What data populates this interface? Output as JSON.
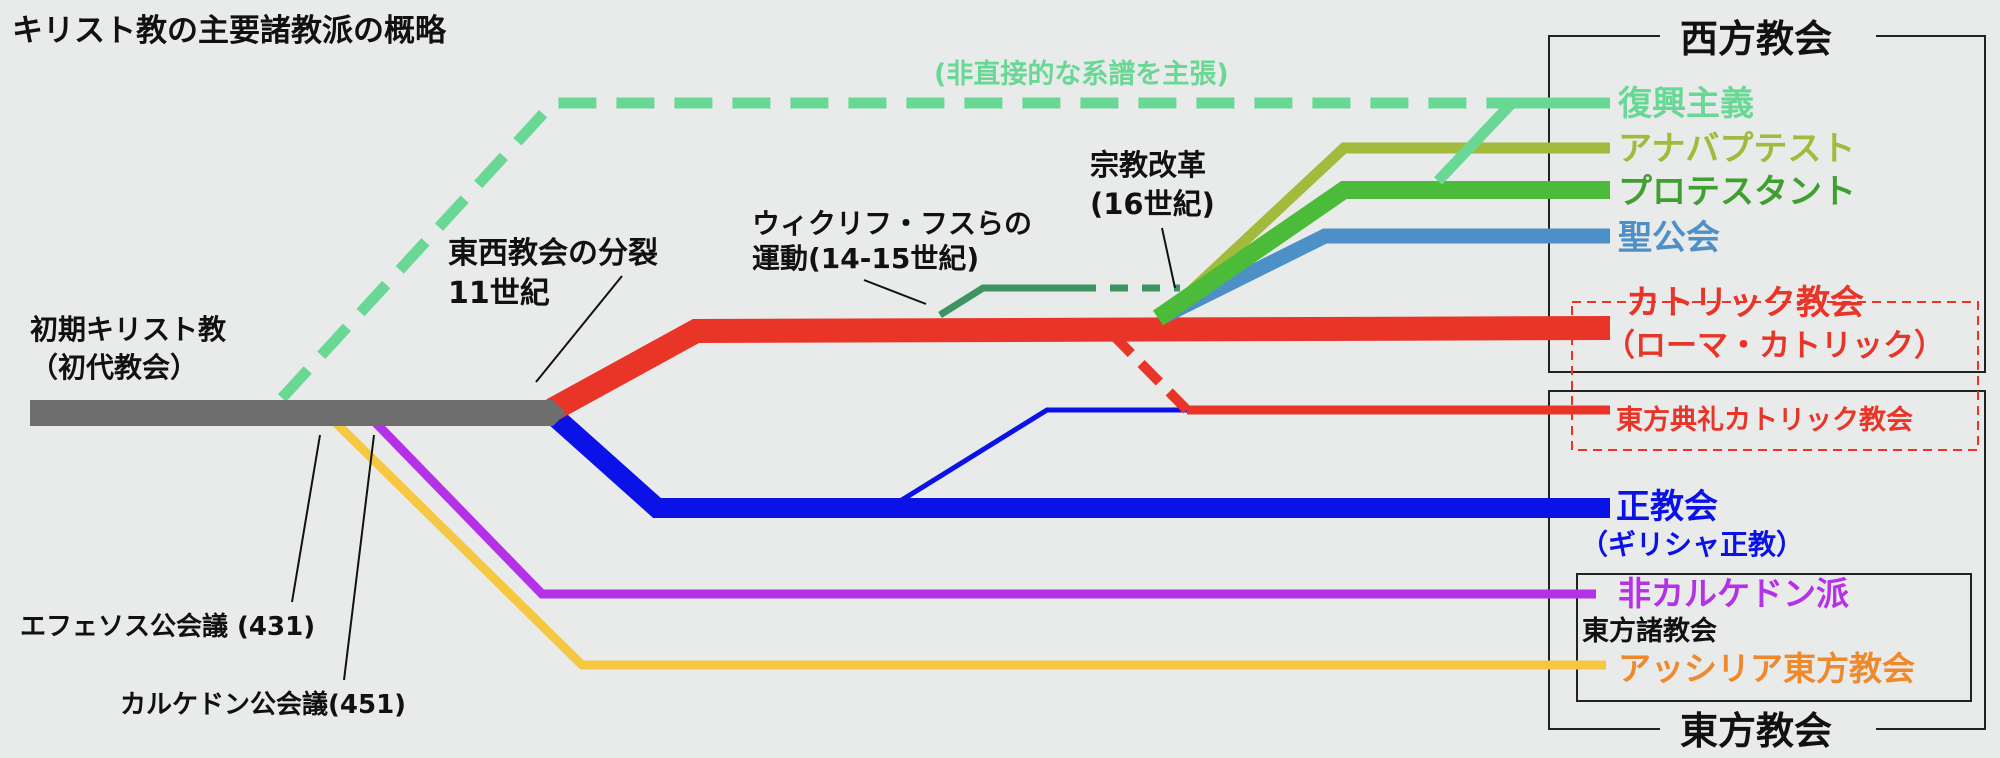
{
  "title": "キリスト教の主要諸教派の概略",
  "colors": {
    "background": "#e9eaea",
    "early": "#6e6e6e",
    "restorationism": "#6ad895",
    "anabaptist": "#a3bb3c",
    "protestant": "#4dbb3a",
    "anglican": "#4d90c8",
    "catholic": "#e83528",
    "orthodox": "#0a12e8",
    "non_chalcedonian": "#b531e8",
    "assyrian": "#f6c842",
    "reform_movement": "#3d9462",
    "text": "#111111"
  },
  "labels": {
    "early_church_1": "初期キリスト教",
    "early_church_2": "（初代教会）",
    "schism_1": "東西教会の分裂",
    "schism_2": "11世紀",
    "wycliffe_1": "ウィクリフ・フスらの",
    "wycliffe_2": "運動(14-15世紀)",
    "reformation_1": "宗教改革",
    "reformation_2": "(16世紀)",
    "indirect_lineage": "(非直接的な系譜を主張)",
    "ephesus": "エフェソス公会議 (431)",
    "chalcedon": "カルケドン公会議(451)"
  },
  "groups": {
    "western": "西方教会",
    "eastern": "東方教会",
    "oriental": "東方諸教会"
  },
  "branches": {
    "restorationism": "復興主義",
    "anabaptist": "アナバプテスト",
    "protestant": "プロテスタント",
    "anglican": "聖公会",
    "catholic_1": "カトリック教会",
    "catholic_2": "（ローマ・カトリック）",
    "eastern_catholic": "東方典礼カトリック教会",
    "orthodox_1": "正教会",
    "orthodox_2": "（ギリシャ正教）",
    "non_chalcedonian": "非カルケドン派",
    "assyrian": "アッシリア東方教会"
  }
}
